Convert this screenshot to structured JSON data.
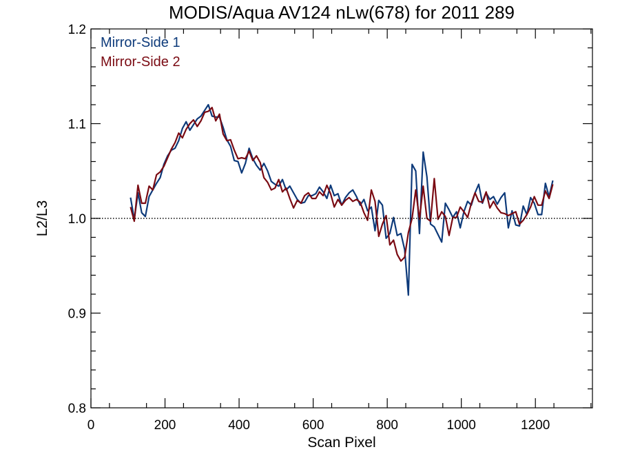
{
  "chart_data": {
    "type": "line",
    "title": "MODIS/Aqua AV124 nLw(678) for 2011 289",
    "xlabel": "Scan Pixel",
    "ylabel": "L2/L3",
    "xlim": [
      0,
      1354
    ],
    "ylim": [
      0.8,
      1.2
    ],
    "x_ticks": [
      0,
      200,
      400,
      600,
      800,
      1000,
      1200
    ],
    "x_tick_labels": [
      "0",
      "200",
      "400",
      "600",
      "800",
      "1000",
      "1200"
    ],
    "y_ticks": [
      0.8,
      0.9,
      1.0,
      1.1,
      1.2
    ],
    "y_tick_labels": [
      "0.8",
      "0.9",
      "1.0",
      "1.1",
      "1.2"
    ],
    "reference_line": {
      "y": 1.0,
      "style": "dotted"
    },
    "grid": false,
    "legend_placement": "top-left",
    "colors": {
      "Mirror-Side 1": "#0d3a7a",
      "Mirror-Side 2": "#7a0a12"
    },
    "x": [
      107,
      117,
      127,
      137,
      147,
      157,
      167,
      177,
      187,
      197,
      207,
      217,
      227,
      237,
      247,
      257,
      267,
      277,
      287,
      297,
      307,
      317,
      327,
      337,
      347,
      357,
      367,
      377,
      387,
      397,
      407,
      417,
      427,
      437,
      447,
      457,
      467,
      477,
      487,
      497,
      507,
      517,
      527,
      537,
      547,
      557,
      567,
      577,
      587,
      597,
      607,
      617,
      627,
      637,
      647,
      657,
      667,
      677,
      687,
      697,
      707,
      717,
      727,
      737,
      747,
      757,
      767,
      777,
      787,
      797,
      807,
      817,
      827,
      837,
      847,
      857,
      867,
      877,
      887,
      897,
      907,
      917,
      927,
      937,
      947,
      957,
      967,
      977,
      987,
      997,
      1007,
      1017,
      1027,
      1037,
      1047,
      1057,
      1067,
      1077,
      1087,
      1097,
      1107,
      1117,
      1127,
      1137,
      1147,
      1157,
      1167,
      1177,
      1187,
      1197,
      1207,
      1217,
      1227,
      1237,
      1247
    ],
    "series": [
      {
        "name": "Mirror-Side 1",
        "values": [
          1.022,
          0.999,
          1.027,
          1.006,
          1.002,
          1.023,
          1.03,
          1.037,
          1.043,
          1.057,
          1.066,
          1.072,
          1.074,
          1.082,
          1.095,
          1.102,
          1.093,
          1.099,
          1.105,
          1.108,
          1.114,
          1.12,
          1.108,
          1.107,
          1.107,
          1.096,
          1.083,
          1.076,
          1.061,
          1.06,
          1.048,
          1.058,
          1.074,
          1.063,
          1.056,
          1.051,
          1.058,
          1.05,
          1.039,
          1.036,
          1.034,
          1.041,
          1.03,
          1.034,
          1.027,
          1.02,
          1.016,
          1.017,
          1.024,
          1.024,
          1.026,
          1.033,
          1.028,
          1.021,
          1.035,
          1.024,
          1.026,
          1.014,
          1.022,
          1.027,
          1.03,
          1.023,
          1.014,
          1.02,
          1.008,
          1.012,
          0.987,
          1.019,
          1.014,
          0.979,
          0.984,
          1.001,
          0.982,
          0.984,
          0.967,
          0.919,
          1.057,
          1.05,
          0.984,
          1.07,
          1.044,
          0.994,
          0.991,
          0.983,
          0.975,
          1.016,
          1.009,
          1.001,
          1.007,
          0.99,
          1.007,
          1.018,
          1.014,
          1.027,
          1.036,
          1.016,
          1.027,
          1.02,
          1.023,
          1.015,
          1.022,
          1.027,
          0.99,
          1.008,
          0.993,
          0.992,
          1.013,
          1.004,
          1.022,
          1.016,
          1.004,
          1.004,
          1.037,
          1.023,
          1.04
        ]
      },
      {
        "name": "Mirror-Side 2",
        "values": [
          1.012,
          0.997,
          1.035,
          1.016,
          1.016,
          1.034,
          1.03,
          1.046,
          1.049,
          1.055,
          1.064,
          1.073,
          1.08,
          1.09,
          1.085,
          1.094,
          1.1,
          1.104,
          1.097,
          1.103,
          1.112,
          1.113,
          1.117,
          1.103,
          1.11,
          1.089,
          1.082,
          1.083,
          1.072,
          1.063,
          1.064,
          1.063,
          1.071,
          1.061,
          1.066,
          1.059,
          1.043,
          1.038,
          1.03,
          1.032,
          1.041,
          1.028,
          1.032,
          1.021,
          1.011,
          1.019,
          1.016,
          1.024,
          1.027,
          1.021,
          1.021,
          1.028,
          1.024,
          1.035,
          1.026,
          1.012,
          1.02,
          1.014,
          1.019,
          1.022,
          1.018,
          1.02,
          1.017,
          1.006,
          0.998,
          1.03,
          1.018,
          0.981,
          0.994,
          1.003,
          0.972,
          0.977,
          0.962,
          0.955,
          0.959,
          0.985,
          1.0,
          1.03,
          0.999,
          1.034,
          1.0,
          0.997,
          1.042,
          0.999,
          1.007,
          1.002,
          0.982,
          1.001,
          1.001,
          1.012,
          1.007,
          1.001,
          1.016,
          1.027,
          1.018,
          1.017,
          1.028,
          1.011,
          1.018,
          1.011,
          1.006,
          1.005,
          1.003,
          1.005,
          1.007,
          0.994,
          0.998,
          1.004,
          1.012,
          1.023,
          1.014,
          1.014,
          1.029,
          1.021,
          1.036
        ]
      }
    ]
  }
}
